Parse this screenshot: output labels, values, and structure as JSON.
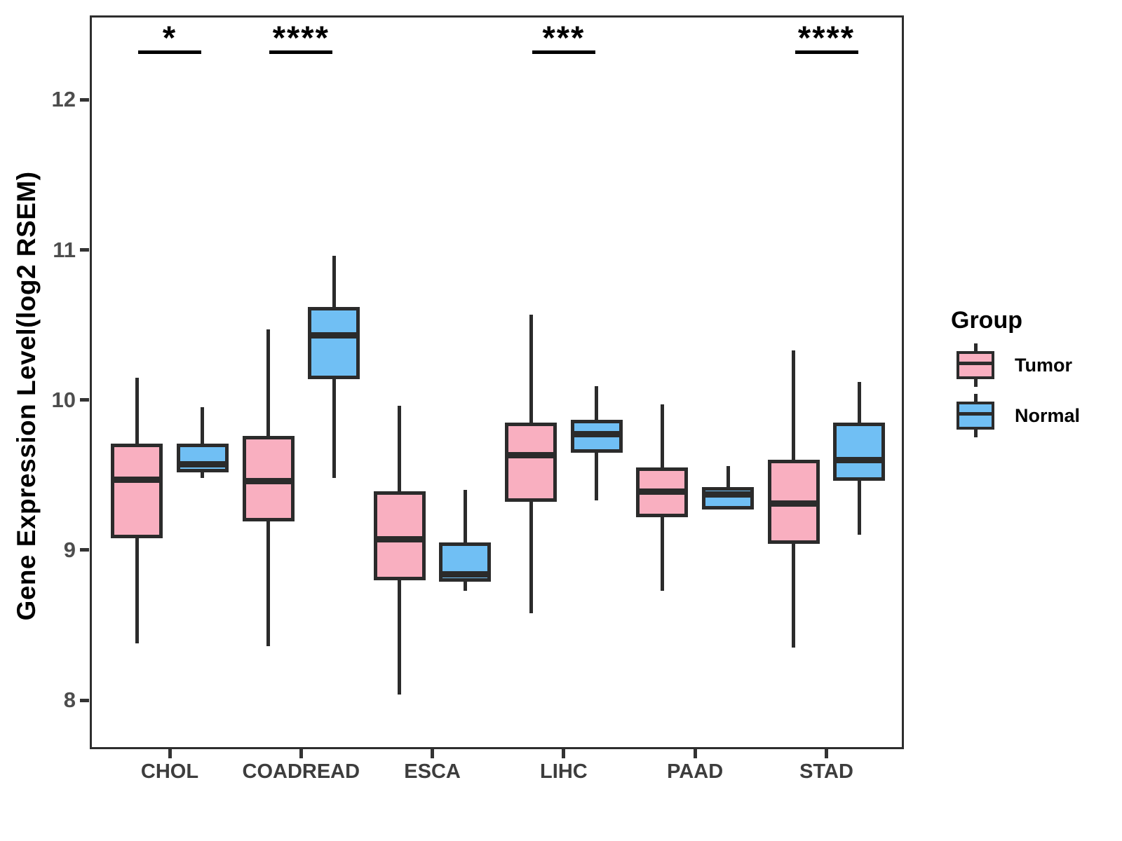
{
  "y_axis": {
    "label": "Gene Expression Level(log2 RSEM)",
    "tick_labels": [
      "12",
      "11",
      "10",
      "9",
      "8"
    ]
  },
  "x_axis": {
    "labels": [
      "CHOL",
      "COADREAD",
      "ESCA",
      "LIHC",
      "PAAD",
      "STAD"
    ]
  },
  "legend": {
    "title": "Group",
    "items": [
      {
        "label": "Tumor",
        "color": "#f9afc0"
      },
      {
        "label": "Normal",
        "color": "#70bff4"
      }
    ]
  },
  "chart_data": {
    "type": "boxplot",
    "title": "",
    "xlabel": "",
    "ylabel": "Gene Expression Level(log2 RSEM)",
    "categories": [
      "CHOL",
      "COADREAD",
      "ESCA",
      "LIHC",
      "PAAD",
      "STAD"
    ],
    "yticks": [
      8,
      9,
      10,
      11,
      12
    ],
    "ylim": [
      7.67,
      12.56
    ],
    "grid": false,
    "legend_position": "right",
    "legend_title": "Group",
    "series": [
      {
        "name": "Tumor",
        "fill": "#f9afc0",
        "stats": [
          {
            "category": "CHOL",
            "low": 8.38,
            "q1": 9.08,
            "median": 9.47,
            "q3": 9.71,
            "high": 10.15
          },
          {
            "category": "COADREAD",
            "low": 8.36,
            "q1": 9.19,
            "median": 9.46,
            "q3": 9.76,
            "high": 10.47
          },
          {
            "category": "ESCA",
            "low": 8.04,
            "q1": 8.8,
            "median": 9.07,
            "q3": 9.39,
            "high": 9.96
          },
          {
            "category": "LIHC",
            "low": 8.58,
            "q1": 9.32,
            "median": 9.63,
            "q3": 9.85,
            "high": 10.57
          },
          {
            "category": "PAAD",
            "low": 8.73,
            "q1": 9.22,
            "median": 9.39,
            "q3": 9.55,
            "high": 9.97
          },
          {
            "category": "STAD",
            "low": 8.35,
            "q1": 9.04,
            "median": 9.31,
            "q3": 9.6,
            "high": 10.33
          }
        ]
      },
      {
        "name": "Normal",
        "fill": "#70bff4",
        "stats": [
          {
            "category": "CHOL",
            "low": 9.48,
            "q1": 9.52,
            "median": 9.57,
            "q3": 9.71,
            "high": 9.95
          },
          {
            "category": "COADREAD",
            "low": 9.48,
            "q1": 10.14,
            "median": 10.43,
            "q3": 10.62,
            "high": 10.96
          },
          {
            "category": "ESCA",
            "low": 8.73,
            "q1": 8.79,
            "median": 8.84,
            "q3": 9.05,
            "high": 9.4
          },
          {
            "category": "LIHC",
            "low": 9.33,
            "q1": 9.65,
            "median": 9.77,
            "q3": 9.87,
            "high": 10.09
          },
          {
            "category": "PAAD",
            "low": 9.27,
            "q1": 9.27,
            "median": 9.37,
            "q3": 9.42,
            "high": 9.56
          },
          {
            "category": "STAD",
            "low": 9.1,
            "q1": 9.46,
            "median": 9.6,
            "q3": 9.85,
            "high": 10.12
          }
        ]
      }
    ],
    "significance": [
      {
        "category": "CHOL",
        "label": "*"
      },
      {
        "category": "COADREAD",
        "label": "****"
      },
      {
        "category": "LIHC",
        "label": "***"
      },
      {
        "category": "STAD",
        "label": "****"
      }
    ],
    "colors": {
      "box_border": "#2b2b2b",
      "median": "#2b2b2b",
      "panel_border": "#2e2e2e",
      "tick_label": "#4d4d4d",
      "category_label": "#3d3d3d",
      "axis_title": "#000000",
      "significance": "#000000",
      "background": "#ffffff"
    }
  }
}
